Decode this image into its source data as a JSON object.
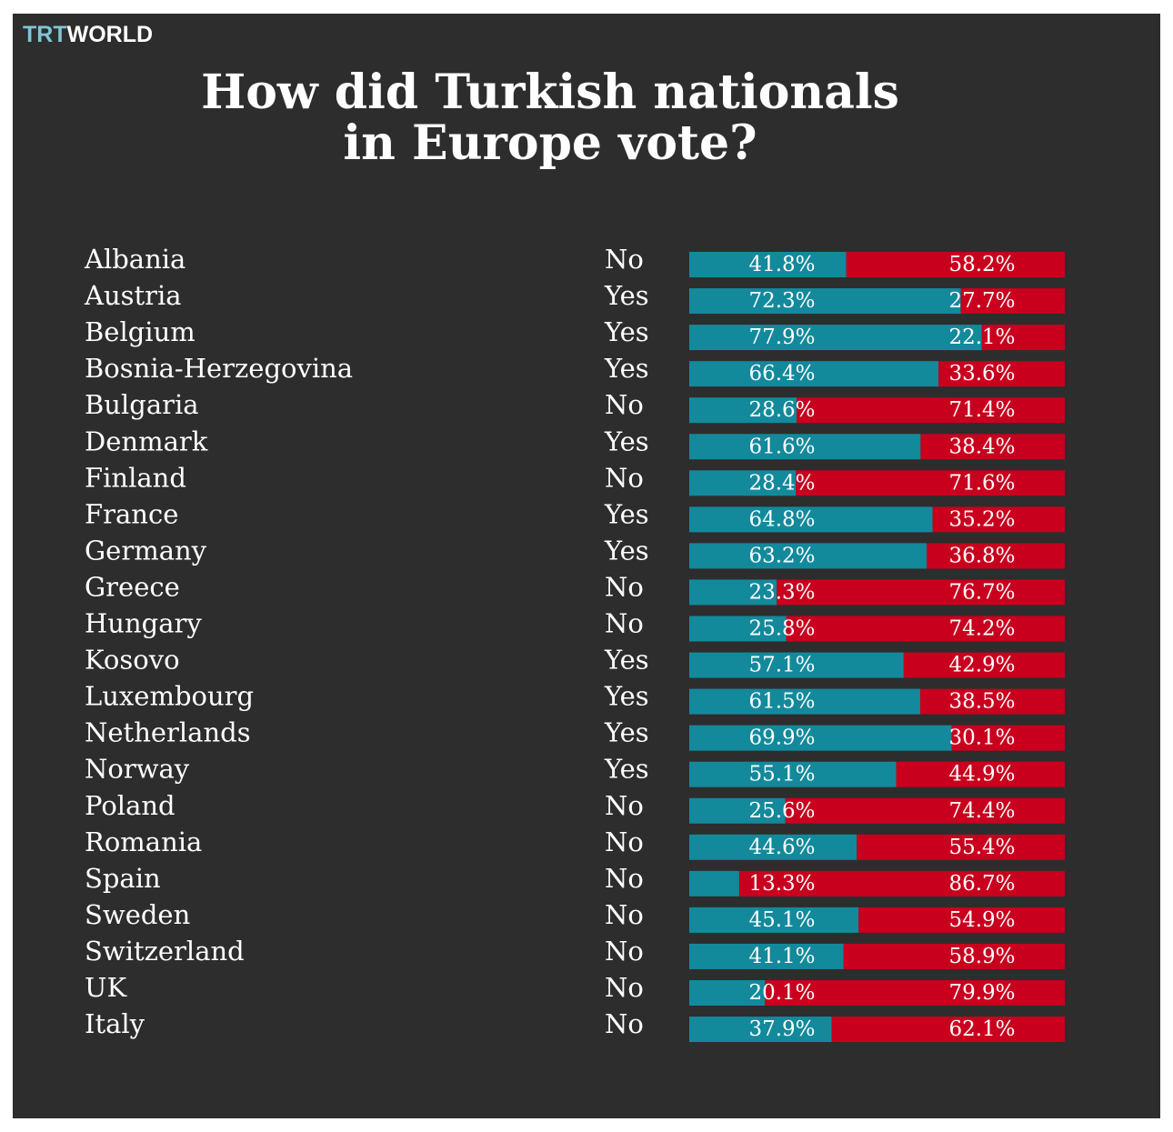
{
  "chart_data": {
    "type": "stacked-bar",
    "logo": {
      "left": "TRT",
      "right": "WORLD"
    },
    "title": "How did Turkish nationals\nin Europe vote?",
    "categories": [
      "Albania",
      "Austria",
      "Belgium",
      "Bosnia-Herzegovina",
      "Bulgaria",
      "Denmark",
      "Finland",
      "France",
      "Germany",
      "Greece",
      "Hungary",
      "Kosovo",
      "Luxembourg",
      "Netherlands",
      "Norway",
      "Poland",
      "Romania",
      "Spain",
      "Sweden",
      "Switzerland",
      "UK",
      "Italy"
    ],
    "results": [
      "No",
      "Yes",
      "Yes",
      "Yes",
      "No",
      "Yes",
      "No",
      "Yes",
      "Yes",
      "No",
      "No",
      "Yes",
      "Yes",
      "Yes",
      "Yes",
      "No",
      "No",
      "No",
      "No",
      "No",
      "No",
      "No"
    ],
    "xlim": [
      0,
      100
    ],
    "series": [
      {
        "color": "#13899c",
        "values": [
          41.8,
          72.3,
          77.9,
          66.4,
          28.6,
          61.6,
          28.4,
          64.8,
          63.2,
          23.3,
          25.8,
          57.1,
          61.5,
          69.9,
          55.1,
          25.6,
          44.6,
          13.3,
          45.1,
          41.1,
          20.1,
          37.9
        ],
        "value_labels": [
          "41.8%",
          "72.3%",
          "77.9%",
          "66.4%",
          "28.6%",
          "61.6%",
          "28.4%",
          "64.8%",
          "63.2%",
          "23.3%",
          "25.8%",
          "57.1%",
          "61.5%",
          "69.9%",
          "55.1%",
          "25.6%",
          "44.6%",
          "13.3%",
          "45.1%",
          "41.1%",
          "20.1%",
          "37.9%"
        ]
      },
      {
        "color": "#c8001e",
        "values": [
          58.2,
          27.7,
          22.1,
          33.6,
          71.4,
          38.4,
          71.6,
          35.2,
          36.8,
          76.7,
          74.2,
          42.9,
          38.5,
          30.1,
          44.9,
          74.4,
          55.4,
          86.7,
          54.9,
          58.9,
          79.9,
          62.1
        ],
        "value_labels": [
          "58.2%",
          "27.7%",
          "22.1%",
          "33.6%",
          "71.4%",
          "38.4%",
          "71.6%",
          "35.2%",
          "36.8%",
          "76.7%",
          "74.2%",
          "42.9%",
          "38.5%",
          "30.1%",
          "44.9%",
          "74.4%",
          "55.4%",
          "86.7%",
          "54.9%",
          "58.9%",
          "79.9%",
          "62.1%"
        ]
      }
    ]
  }
}
